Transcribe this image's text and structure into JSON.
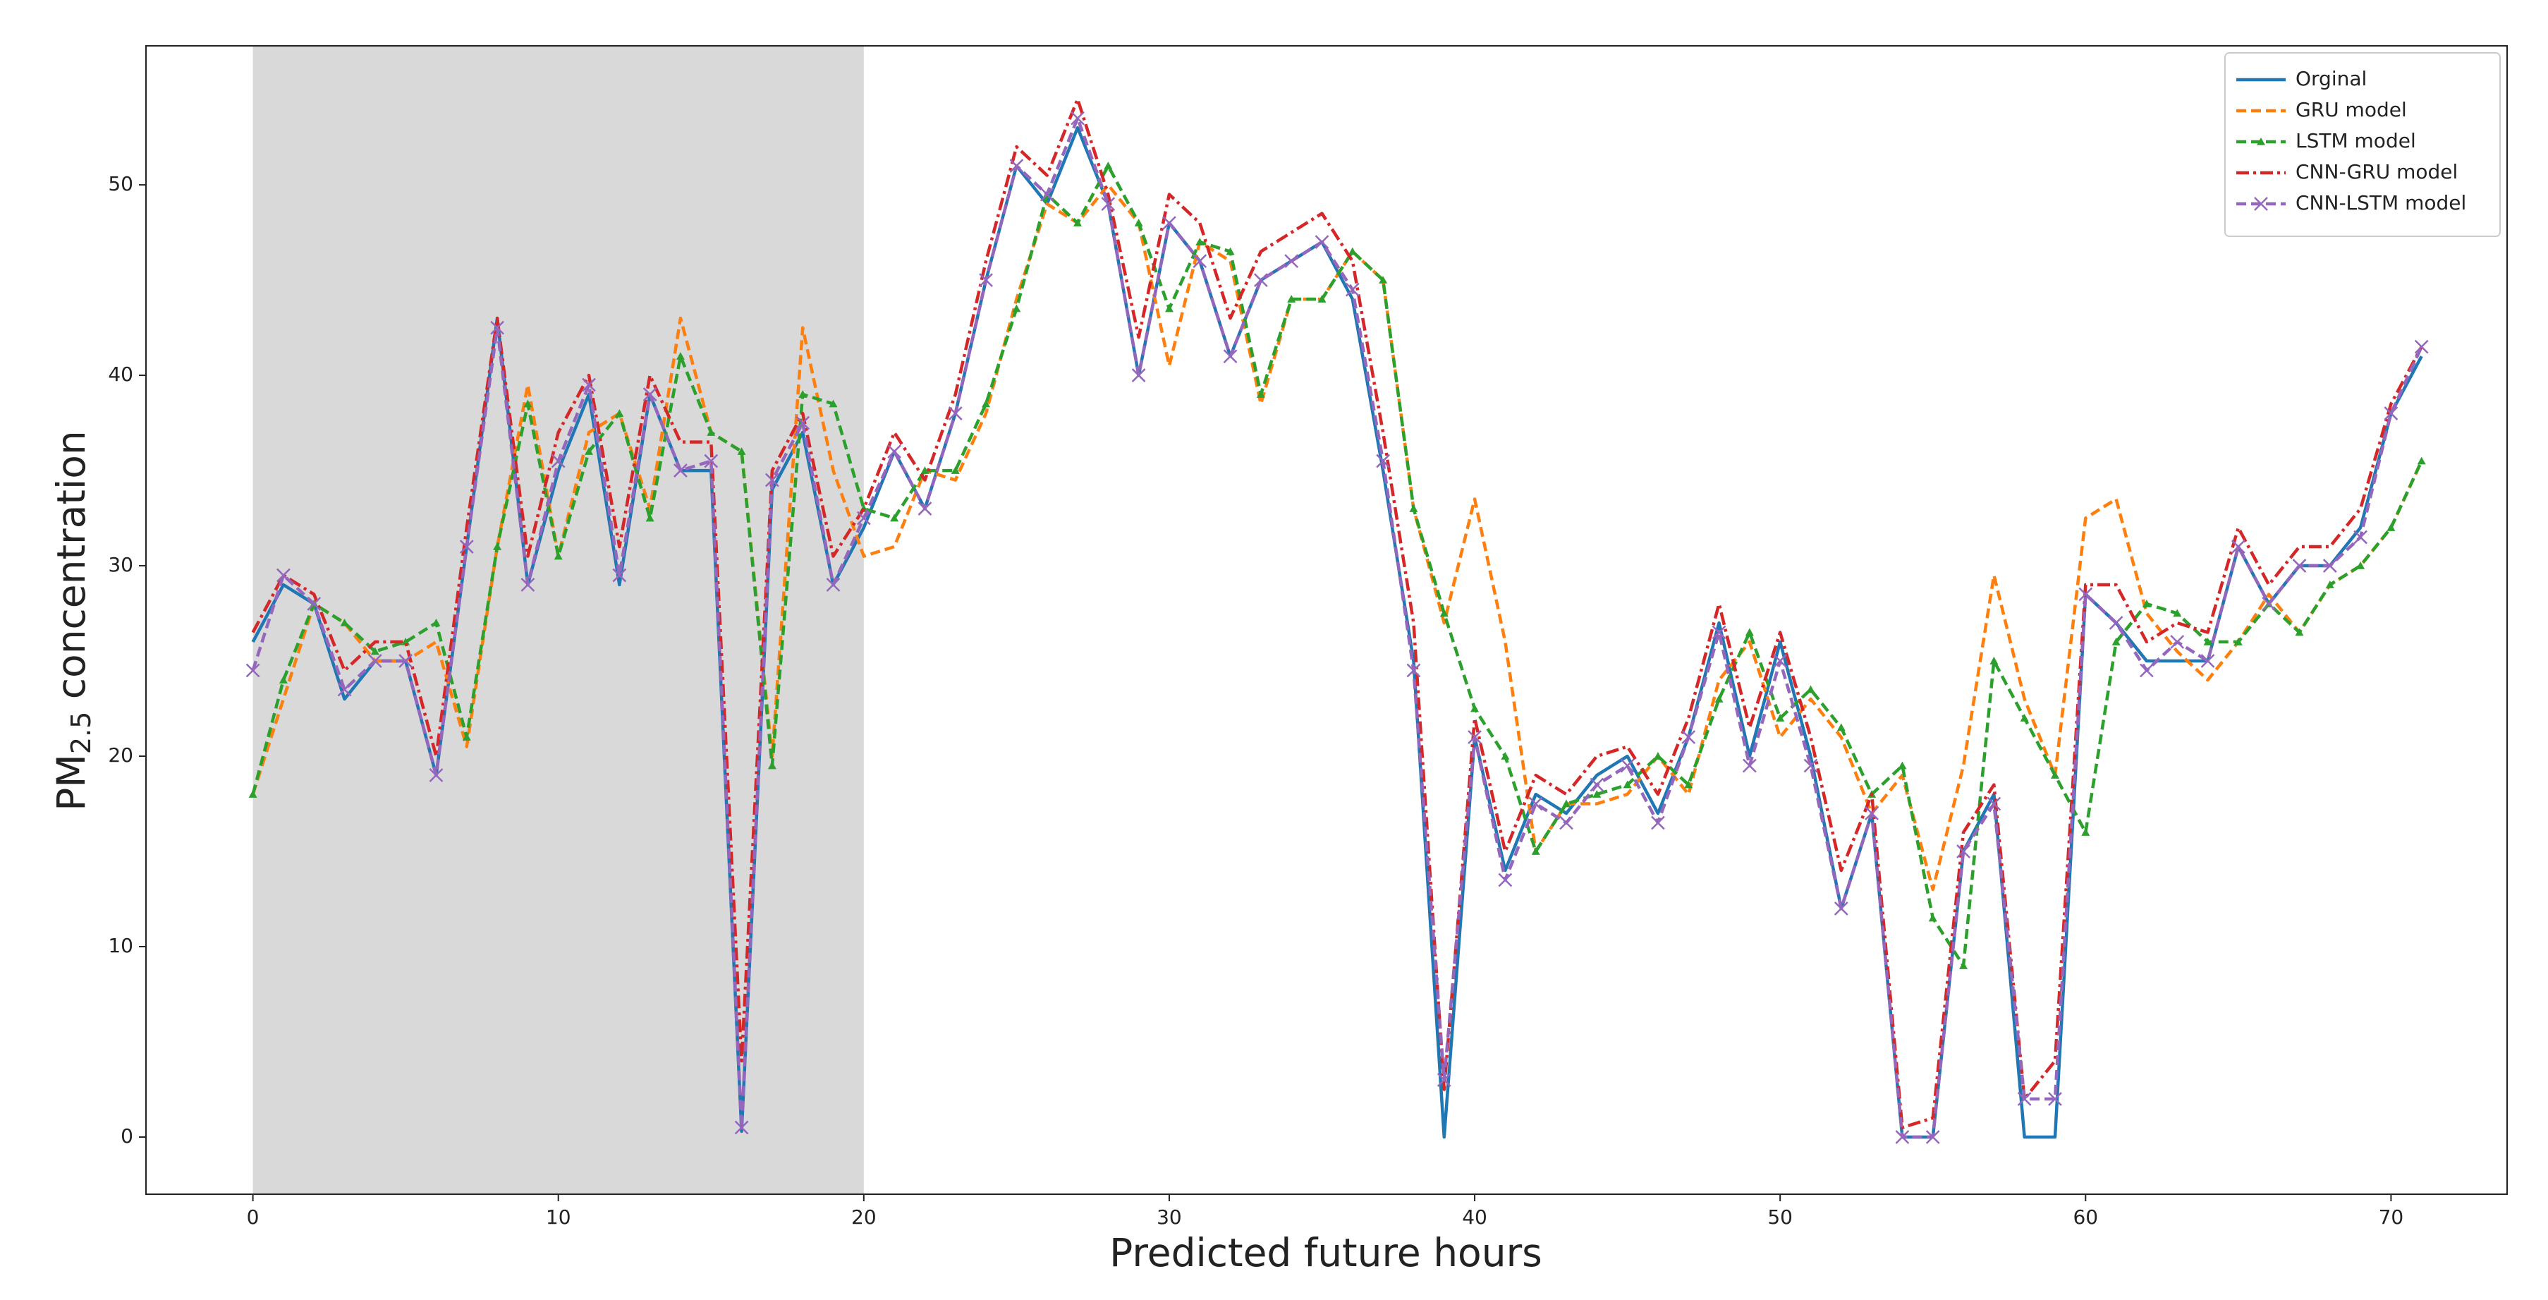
{
  "chart_data": {
    "type": "line",
    "xlabel": "Predicted future hours",
    "ylabel_parts": [
      "PM",
      "2.5",
      " concentration"
    ],
    "x": [
      0,
      1,
      2,
      3,
      4,
      5,
      6,
      7,
      8,
      9,
      10,
      11,
      12,
      13,
      14,
      15,
      16,
      17,
      18,
      19,
      20,
      21,
      22,
      23,
      24,
      25,
      26,
      27,
      28,
      29,
      30,
      31,
      32,
      33,
      34,
      35,
      36,
      37,
      38,
      39,
      40,
      41,
      42,
      43,
      44,
      45,
      46,
      47,
      48,
      49,
      50,
      51,
      52,
      53,
      54,
      55,
      56,
      57,
      58,
      59,
      60,
      61,
      62,
      63,
      64,
      65,
      66,
      67,
      68,
      69,
      70,
      71
    ],
    "xlim": [
      -3.5,
      73.8
    ],
    "ylim": [
      -3,
      57.3
    ],
    "xticks": [
      0,
      10,
      20,
      30,
      40,
      50,
      60,
      70
    ],
    "yticks": [
      0,
      10,
      20,
      30,
      40,
      50
    ],
    "shaded_x": [
      0,
      20
    ],
    "shade_color": "#d9d9d9",
    "legend": "upper right",
    "series": [
      {
        "name": "Orginal",
        "color": "#1f77b4",
        "dash": "solid",
        "values": [
          26,
          29,
          28,
          23,
          25,
          25,
          19,
          31,
          43,
          29,
          35,
          39,
          29,
          39,
          35,
          35,
          0.3,
          34,
          37,
          29,
          32,
          36,
          33,
          38,
          45,
          51,
          49,
          53,
          49,
          40,
          48,
          46,
          41,
          45,
          46,
          47,
          44,
          35,
          25,
          0,
          21,
          14,
          18,
          17,
          19,
          20,
          17,
          21,
          27,
          20,
          26,
          20,
          12,
          17,
          0,
          0,
          15,
          18,
          0,
          0,
          28.5,
          27,
          25,
          25,
          25,
          31,
          28,
          30,
          30,
          32,
          38,
          41
        ]
      },
      {
        "name": "GRU model",
        "color": "#ff7f0e",
        "dash": "dashed",
        "values": [
          18,
          23,
          28,
          27,
          25,
          25,
          26,
          20.5,
          31,
          39.5,
          30.5,
          37,
          38,
          33,
          43,
          37,
          36,
          20,
          42.5,
          35,
          30.5,
          31,
          35,
          34.5,
          38,
          44,
          49,
          48,
          50,
          48,
          40.5,
          47,
          46,
          38.5,
          44,
          44,
          46.5,
          45,
          33,
          27,
          33.5,
          26,
          15,
          17.5,
          17.5,
          18,
          20,
          18,
          24,
          26,
          21,
          23,
          21,
          17,
          19,
          13,
          19.5,
          29.5,
          23,
          19,
          32.5,
          33.5,
          27.5,
          25.5,
          24,
          26,
          28.5,
          26.5,
          29,
          30,
          32,
          35.5
        ]
      },
      {
        "name": "LSTM model",
        "color": "#2ca02c",
        "dash": "dashed",
        "marker": "^",
        "values": [
          18,
          24,
          28,
          27,
          25.5,
          26,
          27,
          21,
          31,
          38.5,
          30.5,
          36,
          38,
          32.5,
          41,
          37,
          36,
          19.5,
          39,
          38.5,
          33,
          32.5,
          35,
          35,
          38.5,
          43.5,
          49.5,
          48,
          51,
          48,
          43.5,
          47,
          46.5,
          39,
          44,
          44,
          46.5,
          45,
          33,
          27.5,
          22.5,
          20,
          15,
          17.5,
          18,
          18.5,
          20,
          18.5,
          23,
          26.5,
          22,
          23.5,
          21.5,
          18,
          19.5,
          11.5,
          9,
          25,
          22,
          19,
          16,
          26,
          28,
          27.5,
          26,
          26,
          28,
          26.5,
          29,
          30,
          32,
          35.5
        ]
      },
      {
        "name": "CNN-GRU model",
        "color": "#d62728",
        "dash": "dashdot",
        "values": [
          26.5,
          29.5,
          28.5,
          24.5,
          26,
          26,
          20,
          32,
          43,
          30.5,
          37,
          40,
          31,
          40,
          36.5,
          36.5,
          4,
          35,
          38,
          30.5,
          33,
          37,
          34.5,
          39,
          46,
          52,
          50.5,
          54.5,
          49.5,
          42,
          49.5,
          48,
          43,
          46.5,
          47.5,
          48.5,
          46,
          37,
          27,
          2.5,
          22,
          15,
          19,
          18,
          20,
          20.5,
          18,
          22,
          28,
          21.5,
          26.5,
          21,
          14,
          18,
          0.5,
          1,
          16,
          18.5,
          2,
          4,
          29,
          29,
          26,
          27,
          26.5,
          32,
          29,
          31,
          31,
          33,
          38.5,
          41.5
        ]
      },
      {
        "name": "CNN-LSTM model",
        "color": "#9467bd",
        "dash": "dashed",
        "marker": "x",
        "values": [
          24.5,
          29.5,
          28,
          23.5,
          25,
          25,
          19,
          31,
          42.5,
          29,
          35.5,
          39.5,
          29.5,
          39,
          35,
          35.5,
          0.5,
          34.5,
          37.5,
          29,
          32.5,
          36,
          33,
          38,
          45,
          51,
          49.5,
          53.5,
          49,
          40,
          48,
          46,
          41,
          45,
          46,
          47,
          44.5,
          35.5,
          24.5,
          3,
          21,
          13.5,
          17.5,
          16.5,
          18.5,
          19.5,
          16.5,
          21,
          26.5,
          19.5,
          25,
          19.5,
          12,
          17,
          0,
          0,
          15,
          17.5,
          2,
          2,
          28.5,
          27,
          24.5,
          26,
          25,
          31,
          28,
          30,
          30,
          31.5,
          38,
          41.5
        ]
      }
    ]
  }
}
